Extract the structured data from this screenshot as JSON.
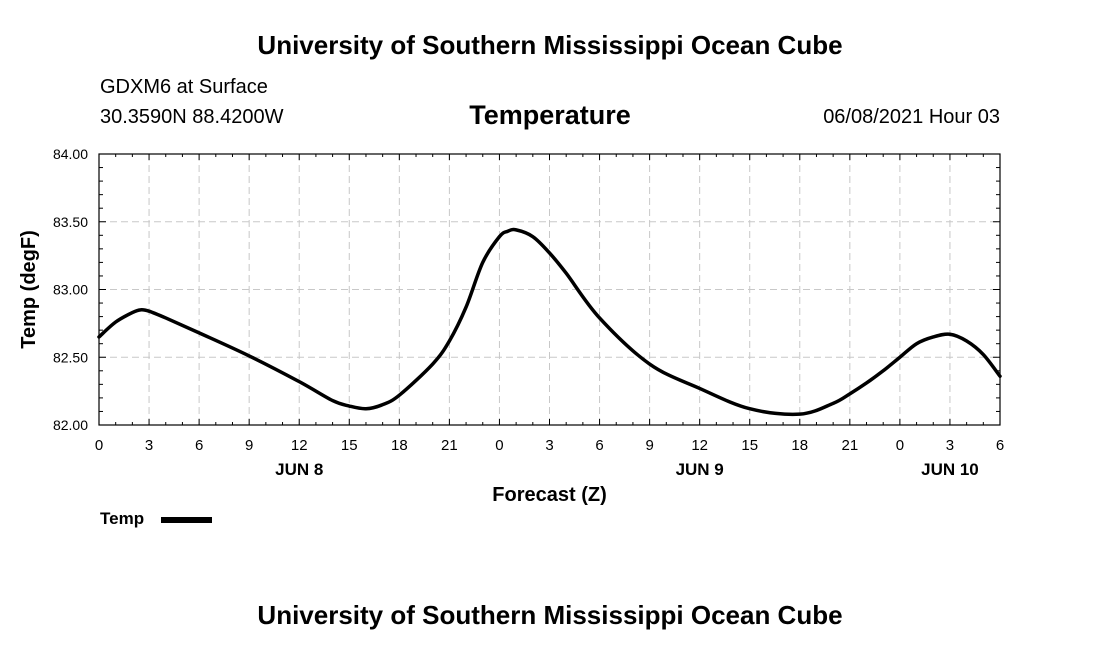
{
  "header": {
    "title": "University of Southern Mississippi Ocean Cube",
    "station": "GDXM6 at Surface",
    "coords": "30.3590N  88.4200W",
    "chart_title": "Temperature",
    "timestamp": "06/08/2021 Hour 03"
  },
  "footer": {
    "title": "University of Southern Mississippi Ocean Cube"
  },
  "legend": {
    "label": "Temp"
  },
  "colors": {
    "line": "#000000",
    "grid": "#c8c8c8",
    "axis": "#000000"
  },
  "chart_data": {
    "type": "line",
    "title": "Temperature",
    "xlabel": "Forecast (Z)",
    "ylabel": "Temp (degF)",
    "xlim": [
      0,
      54
    ],
    "ylim": [
      82.0,
      84.0
    ],
    "grid": true,
    "legend_placement": "bottom-left",
    "y_ticks": [
      "82.00",
      "82.50",
      "83.00",
      "83.50",
      "84.00"
    ],
    "x_tick_hours": [
      0,
      3,
      6,
      9,
      12,
      15,
      18,
      21,
      24,
      27,
      30,
      33,
      36,
      39,
      42,
      45,
      48,
      51,
      54
    ],
    "x_tick_labels": [
      "0",
      "3",
      "6",
      "9",
      "12",
      "15",
      "18",
      "21",
      "0",
      "3",
      "6",
      "9",
      "12",
      "15",
      "18",
      "21",
      "0",
      "3",
      "6"
    ],
    "date_labels": [
      {
        "label": "JUN 8",
        "hour": 12
      },
      {
        "label": "JUN 9",
        "hour": 36
      },
      {
        "label": "JUN 10",
        "hour": 51
      }
    ],
    "series": [
      {
        "name": "Temp",
        "x": [
          0,
          1,
          2,
          2.5,
          3,
          4,
          6,
          9,
          12,
          14,
          15,
          16,
          17,
          18,
          20,
          21,
          22,
          23,
          24,
          24.5,
          25,
          26,
          27,
          28,
          30,
          33,
          36,
          39,
          42,
          44,
          45,
          46,
          47,
          48,
          49,
          50,
          51,
          52,
          53,
          54
        ],
        "y": [
          82.65,
          82.76,
          82.83,
          82.85,
          82.84,
          82.79,
          82.68,
          82.51,
          82.32,
          82.18,
          82.14,
          82.12,
          82.15,
          82.22,
          82.45,
          82.62,
          82.87,
          83.2,
          83.39,
          83.43,
          83.44,
          83.39,
          83.27,
          83.12,
          82.79,
          82.45,
          82.27,
          82.12,
          82.08,
          82.16,
          82.23,
          82.31,
          82.4,
          82.5,
          82.6,
          82.65,
          82.67,
          82.62,
          82.52,
          82.36
        ]
      }
    ]
  }
}
